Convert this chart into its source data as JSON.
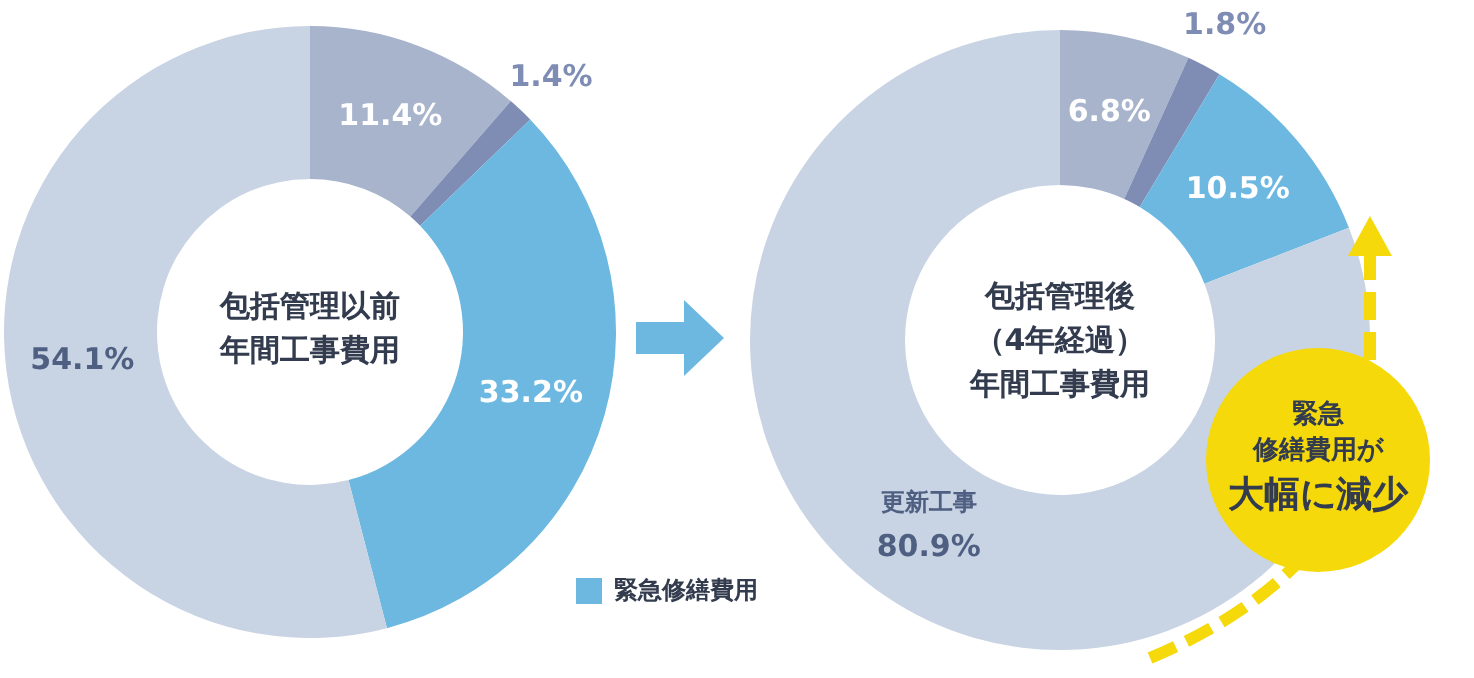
{
  "chart_data": [
    {
      "type": "donut",
      "title": "包括管理以前年間工事費用",
      "categories": [
        null,
        null,
        "緊急修繕費用",
        null
      ],
      "values": [
        11.4,
        1.4,
        33.2,
        54.1
      ],
      "value_labels": [
        "11.4%",
        "1.4%",
        "33.2%",
        "54.1%"
      ],
      "colors": [
        "#a7b4cc",
        "#7f8db5",
        "#6cb8e0",
        "#c8d3e3"
      ],
      "legend": "bottom right"
    },
    {
      "type": "donut",
      "title": "包括管理後（4年経過）年間工事費用",
      "categories": [
        null,
        null,
        null,
        "更新工事"
      ],
      "values": [
        6.8,
        1.8,
        10.5,
        80.9
      ],
      "value_labels": [
        "6.8%",
        "1.8%",
        "10.5%",
        "80.9%"
      ],
      "colors": [
        "#a7b4cc",
        "#7f8db5",
        "#6cb8e0",
        "#c8d3e3"
      ],
      "annotations": [
        "緊急",
        "修繕費用が",
        "大幅に減少"
      ]
    }
  ]
}
